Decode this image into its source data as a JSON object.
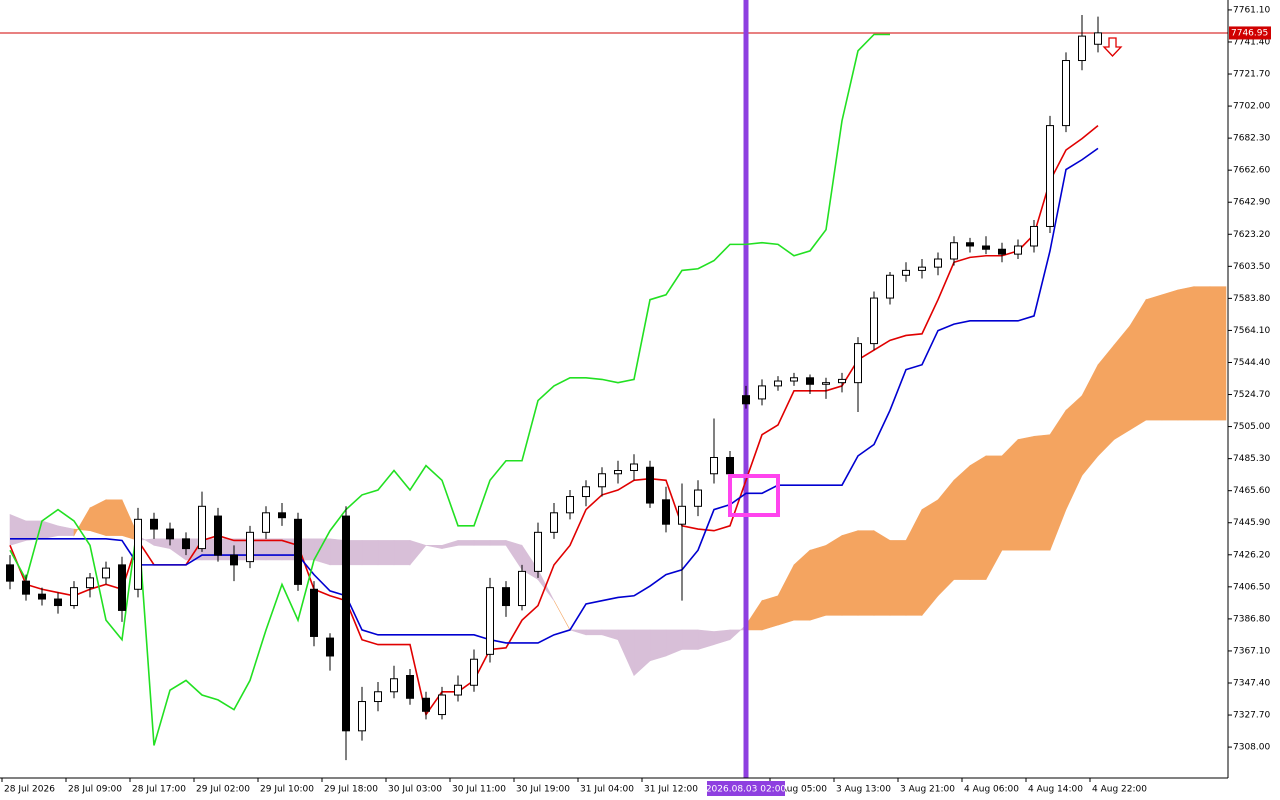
{
  "chart_data": {
    "type": "candlestick",
    "categories": [
      "28 Jul 2026",
      null,
      null,
      null,
      "28 Jul 09:00",
      null,
      null,
      null,
      "28 Jul 17:00",
      null,
      null,
      null,
      "29 Jul 02:00",
      null,
      null,
      null,
      "29 Jul 10:00",
      null,
      null,
      null,
      "29 Jul 18:00",
      null,
      null,
      null,
      "30 Jul 03:00",
      null,
      null,
      null,
      "30 Jul 11:00",
      null,
      null,
      null,
      "30 Jul 19:00",
      null,
      null,
      null,
      "31 Jul 04:00",
      null,
      null,
      null,
      "31 Jul 12:00",
      null,
      null,
      null,
      null,
      null,
      null,
      null,
      "3 Aug 05:00",
      null,
      null,
      null,
      "3 Aug 13:00",
      null,
      null,
      null,
      "3 Aug 21:00",
      null,
      null,
      null,
      "4 Aug 06:00",
      null,
      null,
      null,
      "4 Aug 14:00",
      null,
      null,
      null,
      "4 Aug 22:00",
      null,
      null,
      null,
      null,
      null,
      null,
      null,
      null
    ],
    "crosshair": {
      "index": 46,
      "label": "2026.08.03 02:00",
      "color": "#8e3fe0"
    },
    "candles": {
      "up_color": "#ffffff",
      "down_color": "#000000",
      "edge_color": "#000000",
      "open": [
        7420,
        7410,
        7402,
        7399,
        7395,
        7406,
        7412,
        7420,
        7405,
        7448,
        7442,
        7436,
        7430,
        7450,
        7426,
        7422,
        7440,
        7452,
        7448,
        7405,
        7375,
        7450,
        7318,
        7336,
        7342,
        7352,
        7338,
        7328,
        7340,
        7346,
        7365,
        7406,
        7395,
        7416,
        7440,
        7452,
        7462,
        7468,
        7476,
        7478,
        7480,
        7460,
        7445,
        7456,
        7476,
        7486,
        7524,
        7522,
        7530,
        7533,
        7535,
        7531,
        7532,
        7532,
        7556,
        7584,
        7598,
        7601,
        7603,
        7608,
        7618,
        7616,
        7614,
        7611,
        7616,
        7628,
        7690,
        7730,
        7740,
        null,
        null,
        null,
        null,
        null,
        null,
        null,
        null
      ],
      "high": [
        7426,
        7414,
        7406,
        7403,
        7410,
        7415,
        7422,
        7425,
        7455,
        7452,
        7446,
        7440,
        7465,
        7455,
        7432,
        7444,
        7456,
        7458,
        7452,
        7410,
        7378,
        7456,
        7345,
        7348,
        7358,
        7356,
        7342,
        7345,
        7352,
        7368,
        7412,
        7410,
        7420,
        7446,
        7458,
        7466,
        7472,
        7480,
        7484,
        7488,
        7484,
        7468,
        7470,
        7472,
        7510,
        7490,
        7530,
        7534,
        7536,
        7538,
        7537,
        7535,
        7538,
        7560,
        7588,
        7600,
        7606,
        7608,
        7612,
        7622,
        7621,
        7622,
        7618,
        7620,
        7632,
        7696,
        7735,
        7758,
        7757,
        null,
        null,
        null,
        null,
        null,
        null,
        null,
        null
      ],
      "low": [
        7405,
        7398,
        7395,
        7390,
        7393,
        7400,
        7408,
        7385,
        7400,
        7436,
        7432,
        7426,
        7428,
        7422,
        7410,
        7418,
        7436,
        7444,
        7404,
        7370,
        7355,
        7300,
        7312,
        7330,
        7338,
        7334,
        7325,
        7325,
        7336,
        7342,
        7360,
        7388,
        7392,
        7412,
        7436,
        7448,
        7456,
        7462,
        7470,
        7472,
        7455,
        7440,
        7398,
        7450,
        7470,
        7472,
        7516,
        7518,
        7527,
        7530,
        7525,
        7522,
        7526,
        7514,
        7552,
        7580,
        7594,
        7596,
        7598,
        7604,
        7612,
        7611,
        7606,
        7608,
        7612,
        7624,
        7686,
        7724,
        7735,
        null,
        null,
        null,
        null,
        null,
        null,
        null,
        null
      ],
      "close": [
        7410,
        7402,
        7399,
        7395,
        7406,
        7412,
        7418,
        7392,
        7448,
        7442,
        7436,
        7430,
        7456,
        7426,
        7420,
        7440,
        7452,
        7449,
        7408,
        7376,
        7364,
        7318,
        7336,
        7342,
        7350,
        7338,
        7330,
        7340,
        7346,
        7362,
        7406,
        7395,
        7416,
        7440,
        7452,
        7462,
        7468,
        7476,
        7478,
        7482,
        7458,
        7445,
        7456,
        7466,
        7486,
        7476,
        7519,
        7530,
        7533,
        7535,
        7531,
        7532,
        7534,
        7556,
        7584,
        7598,
        7601,
        7603,
        7608,
        7618,
        7616,
        7614,
        7611,
        7616,
        7628,
        7690,
        7730,
        7745,
        7747,
        null,
        null,
        null,
        null,
        null,
        null,
        null,
        null
      ]
    },
    "lines": [
      {
        "color": "#e00000",
        "values": [
          7432,
          7408,
          7405,
          7403,
          7401,
          7405,
          7408,
          7405,
          7435,
          7420,
          7420,
          7420,
          7435,
          7438,
          7435,
          7435,
          7435,
          7435,
          7432,
          7405,
          7401,
          7398,
          7374,
          7371,
          7371,
          7371,
          7328,
          7342,
          7342,
          7349,
          7368,
          7369,
          7386,
          7395,
          7420,
          7432,
          7454,
          7463,
          7466,
          7472,
          7473,
          7472,
          7444,
          7442,
          7441,
          7444,
          7472,
          7500,
          7506,
          7527,
          7527,
          7527,
          7530,
          7546,
          7552,
          7558,
          7561,
          7562,
          7583,
          7606,
          7609,
          7610,
          7610,
          7613,
          7623,
          7656,
          7675,
          7682,
          7690,
          null,
          null,
          null,
          null,
          null,
          null,
          null,
          null
        ]
      },
      {
        "color": "#0000d0",
        "values": [
          7436,
          7436,
          7436,
          7436,
          7436,
          7436,
          7436,
          7435,
          7420,
          7420,
          7420,
          7420,
          7426,
          7426,
          7426,
          7426,
          7426,
          7426,
          7426,
          7414,
          7404,
          7401,
          7380,
          7377,
          7377,
          7377,
          7377,
          7377,
          7377,
          7377,
          7374,
          7372,
          7372,
          7372,
          7377,
          7380,
          7396,
          7398,
          7400,
          7401,
          7407,
          7414,
          7417,
          7429,
          7454,
          7457,
          7464,
          7464,
          7469,
          7469,
          7469,
          7469,
          7469,
          7487,
          7494,
          7515,
          7540,
          7543,
          7564,
          7568,
          7570,
          7570,
          7570,
          7570,
          7573,
          7613,
          7663,
          7669,
          7676,
          null,
          null,
          null,
          null,
          null,
          null,
          null,
          null
        ]
      },
      {
        "color": "#22e022",
        "values": [
          7429,
          7411,
          7447,
          7454,
          7447,
          7432,
          7386,
          7374,
          7447,
          7309,
          7343,
          7349,
          7340,
          7337,
          7331,
          7349,
          7380,
          7408,
          7386,
          7423,
          7441,
          7454,
          7463,
          7466,
          7478,
          7466,
          7481,
          7472,
          7444,
          7444,
          7472,
          7484,
          7484,
          7521,
          7530,
          7535,
          7535,
          7534,
          7532,
          7534,
          7583,
          7586,
          7601,
          7602,
          7607,
          7617,
          7617,
          7618,
          7617,
          7610,
          7613,
          7626,
          7693,
          7736,
          7746,
          7746,
          null,
          null,
          null,
          null,
          null,
          null,
          null,
          null,
          null,
          null,
          null,
          null,
          null,
          null,
          null,
          null,
          null,
          null,
          null,
          null,
          null
        ]
      }
    ],
    "cloud": {
      "up_color": "#f4a460",
      "down_color": "#d8bfd8",
      "span_a": [
        7432,
        7435,
        7436,
        7438,
        7438,
        7455,
        7460,
        7460,
        7438,
        7432,
        7430,
        7423,
        7423,
        7423,
        7423,
        7423,
        7423,
        7423,
        7423,
        7423,
        7420,
        7420,
        7420,
        7420,
        7420,
        7420,
        7432,
        7430,
        7432,
        7432,
        7432,
        7432,
        7417,
        7411,
        7398,
        7380,
        7377,
        7377,
        7374,
        7352,
        7361,
        7364,
        7368,
        7368,
        7371,
        7374,
        7383,
        7398,
        7401,
        7420,
        7429,
        7432,
        7438,
        7441,
        7441,
        7435,
        7435,
        7454,
        7460,
        7472,
        7481,
        7487,
        7487,
        7497,
        7499,
        7500,
        7515,
        7524,
        7543,
        7555,
        7567,
        7583,
        7586,
        7589,
        7591,
        7591,
        7591
      ],
      "span_b": [
        7451,
        7447,
        7447,
        7444,
        7442,
        7441,
        7438,
        7438,
        7435,
        7436,
        7436,
        7436,
        7436,
        7436,
        7436,
        7436,
        7436,
        7436,
        7436,
        7436,
        7436,
        7435,
        7435,
        7435,
        7435,
        7435,
        7432,
        7432,
        7435,
        7435,
        7435,
        7435,
        7432,
        7417,
        7398,
        7380,
        7380,
        7380,
        7380,
        7380,
        7380,
        7380,
        7380,
        7380,
        7379,
        7380,
        7380,
        7380,
        7383,
        7386,
        7386,
        7389,
        7389,
        7389,
        7389,
        7389,
        7389,
        7389,
        7401,
        7411,
        7411,
        7411,
        7429,
        7429,
        7429,
        7429,
        7454,
        7475,
        7487,
        7497,
        7503,
        7509,
        7509,
        7509,
        7509,
        7509,
        7509
      ]
    },
    "last_price": {
      "value": 7746.95,
      "label": "7746.95",
      "color": "#d00000"
    },
    "ylim": [
      7289.0,
      7767.2
    ],
    "yticks": [
      {
        "value": 7761.1,
        "label": "7761.10"
      },
      {
        "value": 7741.4,
        "label": "7741.40"
      },
      {
        "value": 7721.7,
        "label": "7721.70"
      },
      {
        "value": 7702.0,
        "label": "7702.00"
      },
      {
        "value": 7682.3,
        "label": "7682.30"
      },
      {
        "value": 7662.6,
        "label": "7662.60"
      },
      {
        "value": 7642.9,
        "label": "7642.90"
      },
      {
        "value": 7623.2,
        "label": "7623.20"
      },
      {
        "value": 7603.5,
        "label": "7603.50"
      },
      {
        "value": 7583.8,
        "label": "7583.80"
      },
      {
        "value": 7564.1,
        "label": "7564.10"
      },
      {
        "value": 7544.4,
        "label": "7544.40"
      },
      {
        "value": 7524.7,
        "label": "7524.70"
      },
      {
        "value": 7505.0,
        "label": "7505.00"
      },
      {
        "value": 7485.3,
        "label": "7485.30"
      },
      {
        "value": 7465.6,
        "label": "7465.60"
      },
      {
        "value": 7445.9,
        "label": "7445.90"
      },
      {
        "value": 7426.2,
        "label": "7426.20"
      },
      {
        "value": 7406.5,
        "label": "7406.50"
      },
      {
        "value": 7386.8,
        "label": "7386.80"
      },
      {
        "value": 7367.1,
        "label": "7367.10"
      },
      {
        "value": 7347.4,
        "label": "7347.40"
      },
      {
        "value": 7327.7,
        "label": "7327.70"
      },
      {
        "value": 7308.0,
        "label": "7308.00"
      }
    ],
    "grid": false
  }
}
